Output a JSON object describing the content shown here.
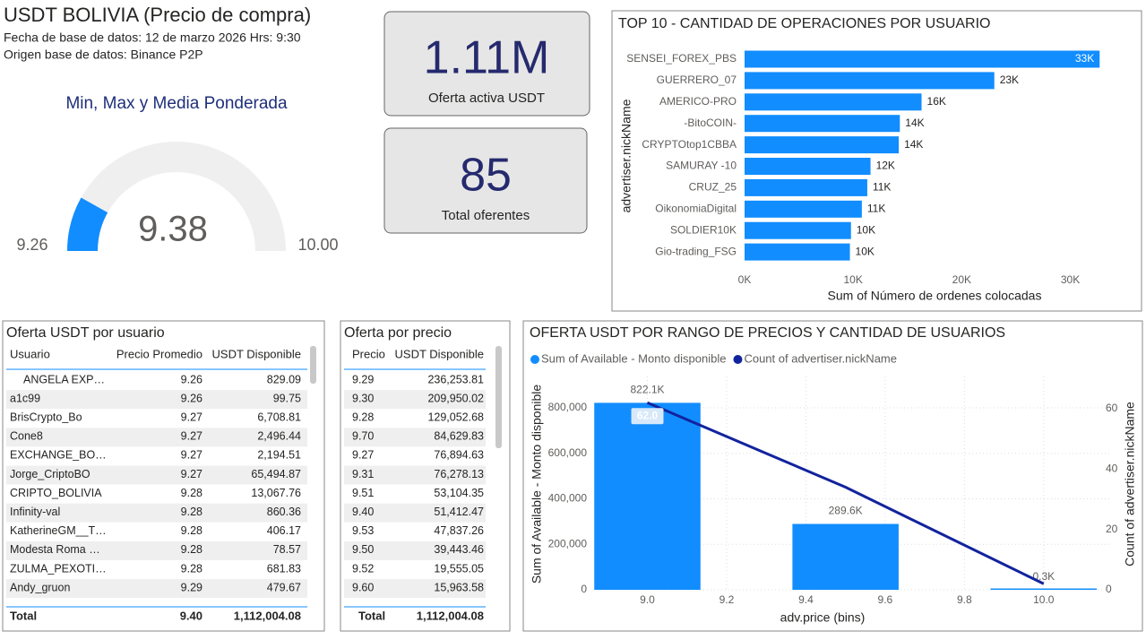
{
  "header": {
    "title": "USDT BOLIVIA (Precio de compra)",
    "line1": "Fecha de base de datos: 12 de marzo 2026 Hrs: 9:30",
    "line2": "Origen base de datos: Binance P2P"
  },
  "kpis": [
    {
      "value": "1.11M",
      "label": "Oferta activa USDT"
    },
    {
      "value": "85",
      "label": "Total oferentes"
    }
  ],
  "chart_data": [
    {
      "type": "gauge",
      "title": "Min, Max y Media Ponderada",
      "value": 9.38,
      "min": 9.26,
      "max": {
        "value": 10,
        "label": "10.00"
      },
      "color": "#118dff"
    },
    {
      "type": "bar",
      "orientation": "horizontal",
      "title": "TOP 10 - CANTIDAD DE OPERACIONES POR USUARIO",
      "y_label": "advertiser.nickName",
      "x_label": "Sum of Número de ordenes colocadas",
      "color": "#118dff",
      "categories": [
        "SENSEI_FOREX_PBS",
        "GUERRERO_07",
        "AMERICO-PRO",
        "-BitoCOIN-",
        "CRYPTOtop1CBBA",
        "SAMURAY -10",
        "CRUZ_25",
        "OikonomiaDigital",
        "SOLDIER10K",
        "Gio-trading_FSG"
      ],
      "values": [
        32700,
        23000,
        16300,
        14300,
        14200,
        11600,
        11300,
        10800,
        9800,
        9700
      ],
      "value_labels": [
        "33K",
        "23K",
        "16K",
        "14K",
        "14K",
        "12K",
        "11K",
        "11K",
        "10K",
        "10K"
      ],
      "xlim": [
        0,
        34000
      ],
      "xticks": [
        {
          "value": 0,
          "label": "0K"
        },
        {
          "value": 10000,
          "label": "10K"
        },
        {
          "value": 20000,
          "label": "20K"
        },
        {
          "value": 30000,
          "label": "30K"
        }
      ]
    },
    {
      "type": "combo",
      "title": "OFERTA USDT POR RANGO DE PRECIOS Y CANTIDAD DE USUARIOS",
      "x_label": "adv.price (bins)",
      "y_label": "Sum of Available - Monto disponible",
      "y2_label": "Count of advertiser.nickName",
      "legend": "top-left",
      "grid": true,
      "x": [
        9,
        9.5,
        10
      ],
      "series": [
        {
          "name": "Sum of Available - Monto disponible",
          "kind": "bar",
          "color": "#118dff",
          "values": [
            822100,
            289600,
            300
          ],
          "value_labels": [
            "822.1K",
            "289.6K",
            "0.3K"
          ]
        },
        {
          "name": "Count of advertiser.nickName",
          "kind": "line",
          "axis": "y2",
          "color": "#12239e",
          "values": [
            62,
            34,
            2
          ],
          "value_labels": [
            "62.0",
            null,
            null
          ]
        }
      ],
      "xlim": [
        8.87,
        10.17
      ],
      "xticks": [
        {
          "value": 9,
          "label": "9.0"
        },
        9.2,
        9.4,
        9.6,
        9.8,
        {
          "value": 10,
          "label": "10.0"
        }
      ],
      "ylim": [
        0,
        938000
      ],
      "yticks": [
        0,
        {
          "value": 200000,
          "label": "200,000"
        },
        {
          "value": 400000,
          "label": "400,000"
        },
        {
          "value": 600000,
          "label": "600,000"
        },
        {
          "value": 800000,
          "label": "800,000"
        }
      ],
      "y2lim": [
        0,
        70.7
      ],
      "y2ticks": [
        0,
        20,
        40,
        60
      ]
    }
  ],
  "tables": [
    {
      "title": "Oferta USDT por usuario",
      "columns": [
        "Usuario",
        "Precio Promedio",
        "USDT Disponible"
      ],
      "rows": [
        [
          "ANGELA EXP…",
          "9.26",
          "829.09"
        ],
        [
          "a1c99",
          "9.26",
          "99.75"
        ],
        [
          "BrisCrypto_Bo",
          "9.27",
          "6,708.81"
        ],
        [
          "Cone8",
          "9.27",
          "2,496.44"
        ],
        [
          "EXCHANGE_BO…",
          "9.27",
          "2,194.51"
        ],
        [
          "Jorge_CriptoBO",
          "9.27",
          "65,494.87"
        ],
        [
          "CRIPTO_BOLIVIA",
          "9.28",
          "13,067.76"
        ],
        [
          "Infinity-val",
          "9.28",
          "860.36"
        ],
        [
          "KatherineGM__T…",
          "9.28",
          "406.17"
        ],
        [
          "Modesta Roma …",
          "9.28",
          "78.57"
        ],
        [
          "ZULMA_PEXOTI…",
          "9.28",
          "681.83"
        ],
        [
          "Andy_gruon",
          "9.29",
          "479.67"
        ]
      ],
      "total": [
        "Total",
        "9.40",
        "1,112,004.08"
      ]
    },
    {
      "title": "Oferta por precio",
      "columns": [
        "Precio",
        "USDT Disponible"
      ],
      "rows": [
        [
          "9.29",
          "236,253.81"
        ],
        [
          "9.30",
          "209,950.02"
        ],
        [
          "9.28",
          "129,052.68"
        ],
        [
          "9.70",
          "84,629.83"
        ],
        [
          "9.27",
          "76,894.63"
        ],
        [
          "9.31",
          "76,278.13"
        ],
        [
          "9.51",
          "53,104.35"
        ],
        [
          "9.40",
          "51,412.47"
        ],
        [
          "9.53",
          "47,837.26"
        ],
        [
          "9.50",
          "39,443.46"
        ],
        [
          "9.52",
          "19,555.05"
        ],
        [
          "9.60",
          "15,963.58"
        ]
      ],
      "total": [
        "Total",
        "1,112,004.08"
      ]
    }
  ]
}
